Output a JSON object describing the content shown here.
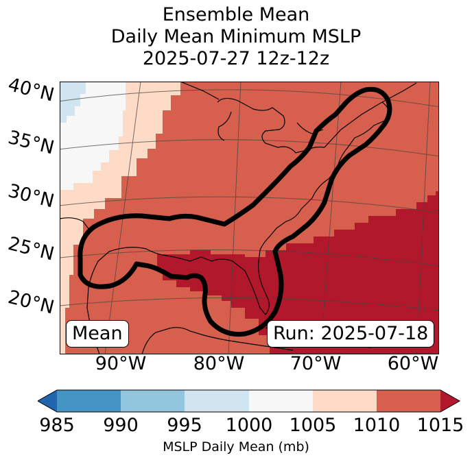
{
  "title": {
    "line1": "Ensemble Mean",
    "line2": "Daily Mean Minimum MSLP",
    "line3": "2025-07-27 12z-12z"
  },
  "map": {
    "lat_labels": [
      "40°N",
      "35°N",
      "30°N",
      "25°N",
      "20°N"
    ],
    "lon_labels": [
      "90°W",
      "80°W",
      "70°W",
      "60°W"
    ],
    "badge_left": "Mean",
    "badge_right": "Run: 2025-07-18"
  },
  "colorbar": {
    "levels": [
      985,
      990,
      995,
      1000,
      1005,
      1010,
      1015
    ],
    "tick_labels": [
      "985",
      "990",
      "995",
      "1000",
      "1005",
      "1010",
      "1015"
    ],
    "colors": [
      "#2166ac",
      "#4393c3",
      "#92c5de",
      "#d1e5f0",
      "#f7f7f7",
      "#fddbc7",
      "#d6604d",
      "#b2182b"
    ],
    "label": "MSLP Daily Mean (mb)"
  },
  "legend_colors": {
    "contour": "#000000"
  }
}
